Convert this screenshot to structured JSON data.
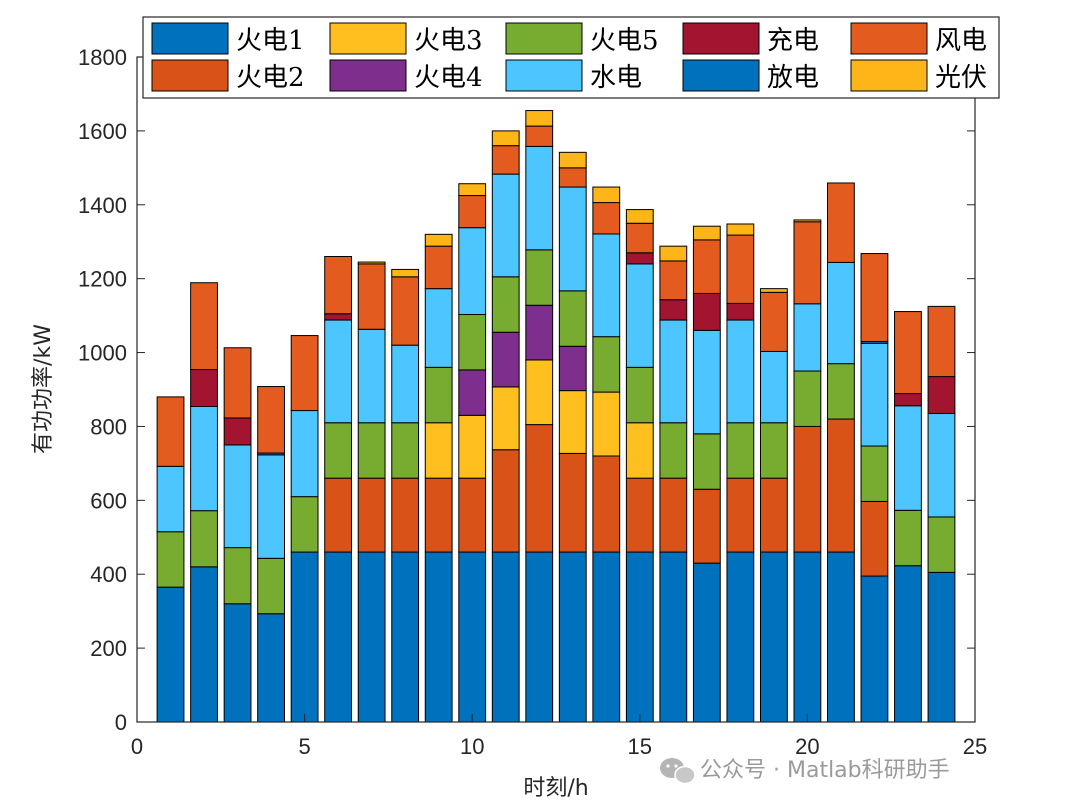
{
  "chart_data": {
    "type": "bar",
    "stacked": true,
    "xlabel": "时刻/h",
    "ylabel": "有功功率/kW",
    "xlim": [
      0,
      25
    ],
    "ylim": [
      0,
      1800
    ],
    "xticks": [
      0,
      5,
      10,
      15,
      20,
      25
    ],
    "yticks": [
      0,
      200,
      400,
      600,
      800,
      1000,
      1200,
      1400,
      1600,
      1800
    ],
    "x": [
      1,
      2,
      3,
      4,
      5,
      6,
      7,
      8,
      9,
      10,
      11,
      12,
      13,
      14,
      15,
      16,
      17,
      18,
      19,
      20,
      21,
      22,
      23,
      24
    ],
    "legend_position": "top",
    "series": [
      {
        "name": "火电1",
        "color": "#0072BD",
        "values": [
          365,
          420,
          320,
          293,
          460,
          460,
          460,
          460,
          460,
          460,
          460,
          460,
          460,
          460,
          460,
          460,
          430,
          460,
          460,
          460,
          460,
          395,
          423,
          405
        ]
      },
      {
        "name": "火电2",
        "color": "#D95319",
        "values": [
          0,
          0,
          0,
          0,
          0,
          200,
          200,
          200,
          200,
          200,
          277,
          345,
          267,
          260,
          200,
          200,
          200,
          200,
          200,
          340,
          360,
          202,
          0,
          0
        ]
      },
      {
        "name": "火电3",
        "color": "#FFBF1F",
        "values": [
          0,
          0,
          0,
          0,
          0,
          0,
          0,
          0,
          150,
          170,
          170,
          175,
          170,
          173,
          150,
          0,
          0,
          0,
          0,
          0,
          0,
          0,
          0,
          0
        ]
      },
      {
        "name": "火电4",
        "color": "#7E2F8E",
        "values": [
          0,
          0,
          0,
          0,
          0,
          0,
          0,
          0,
          0,
          123,
          148,
          148,
          120,
          0,
          0,
          0,
          0,
          0,
          0,
          0,
          0,
          0,
          0,
          0
        ]
      },
      {
        "name": "火电5",
        "color": "#77AC30",
        "values": [
          150,
          152,
          152,
          150,
          150,
          150,
          150,
          150,
          150,
          150,
          150,
          150,
          150,
          150,
          150,
          150,
          150,
          150,
          150,
          150,
          150,
          150,
          150,
          150
        ]
      },
      {
        "name": "水电",
        "color": "#4DC6FF",
        "values": [
          177,
          282,
          278,
          280,
          233,
          278,
          253,
          210,
          213,
          235,
          278,
          280,
          281,
          278,
          280,
          278,
          280,
          278,
          193,
          182,
          274,
          278,
          283,
          280
        ]
      },
      {
        "name": "放电",
        "color": "#0072BD",
        "values": [
          0,
          0,
          0,
          5,
          0,
          0,
          0,
          0,
          0,
          0,
          0,
          0,
          0,
          0,
          0,
          0,
          0,
          0,
          0,
          0,
          0,
          5,
          0,
          0
        ]
      },
      {
        "name": "充电",
        "color": "#A2142F",
        "values": [
          0,
          100,
          73,
          0,
          0,
          17,
          0,
          0,
          0,
          0,
          0,
          0,
          0,
          0,
          30,
          55,
          100,
          45,
          0,
          0,
          0,
          0,
          33,
          100
        ]
      },
      {
        "name": "风电",
        "color": "#E35B1F",
        "values": [
          188,
          235,
          190,
          180,
          203,
          155,
          177,
          185,
          115,
          87,
          77,
          55,
          52,
          85,
          80,
          105,
          145,
          185,
          160,
          222,
          215,
          238,
          222,
          190
        ]
      },
      {
        "name": "光伏",
        "color": "#FDB518",
        "values": [
          0,
          0,
          0,
          0,
          0,
          0,
          5,
          20,
          32,
          32,
          40,
          42,
          42,
          42,
          37,
          40,
          37,
          30,
          10,
          5,
          0,
          0,
          0,
          0
        ]
      }
    ],
    "legend_order": [
      "火电1",
      "火电3",
      "火电5",
      "充电",
      "风电",
      "火电2",
      "火电4",
      "水电",
      "放电",
      "光伏"
    ]
  },
  "watermark": {
    "text": "公众号 · Matlab科研助手"
  }
}
